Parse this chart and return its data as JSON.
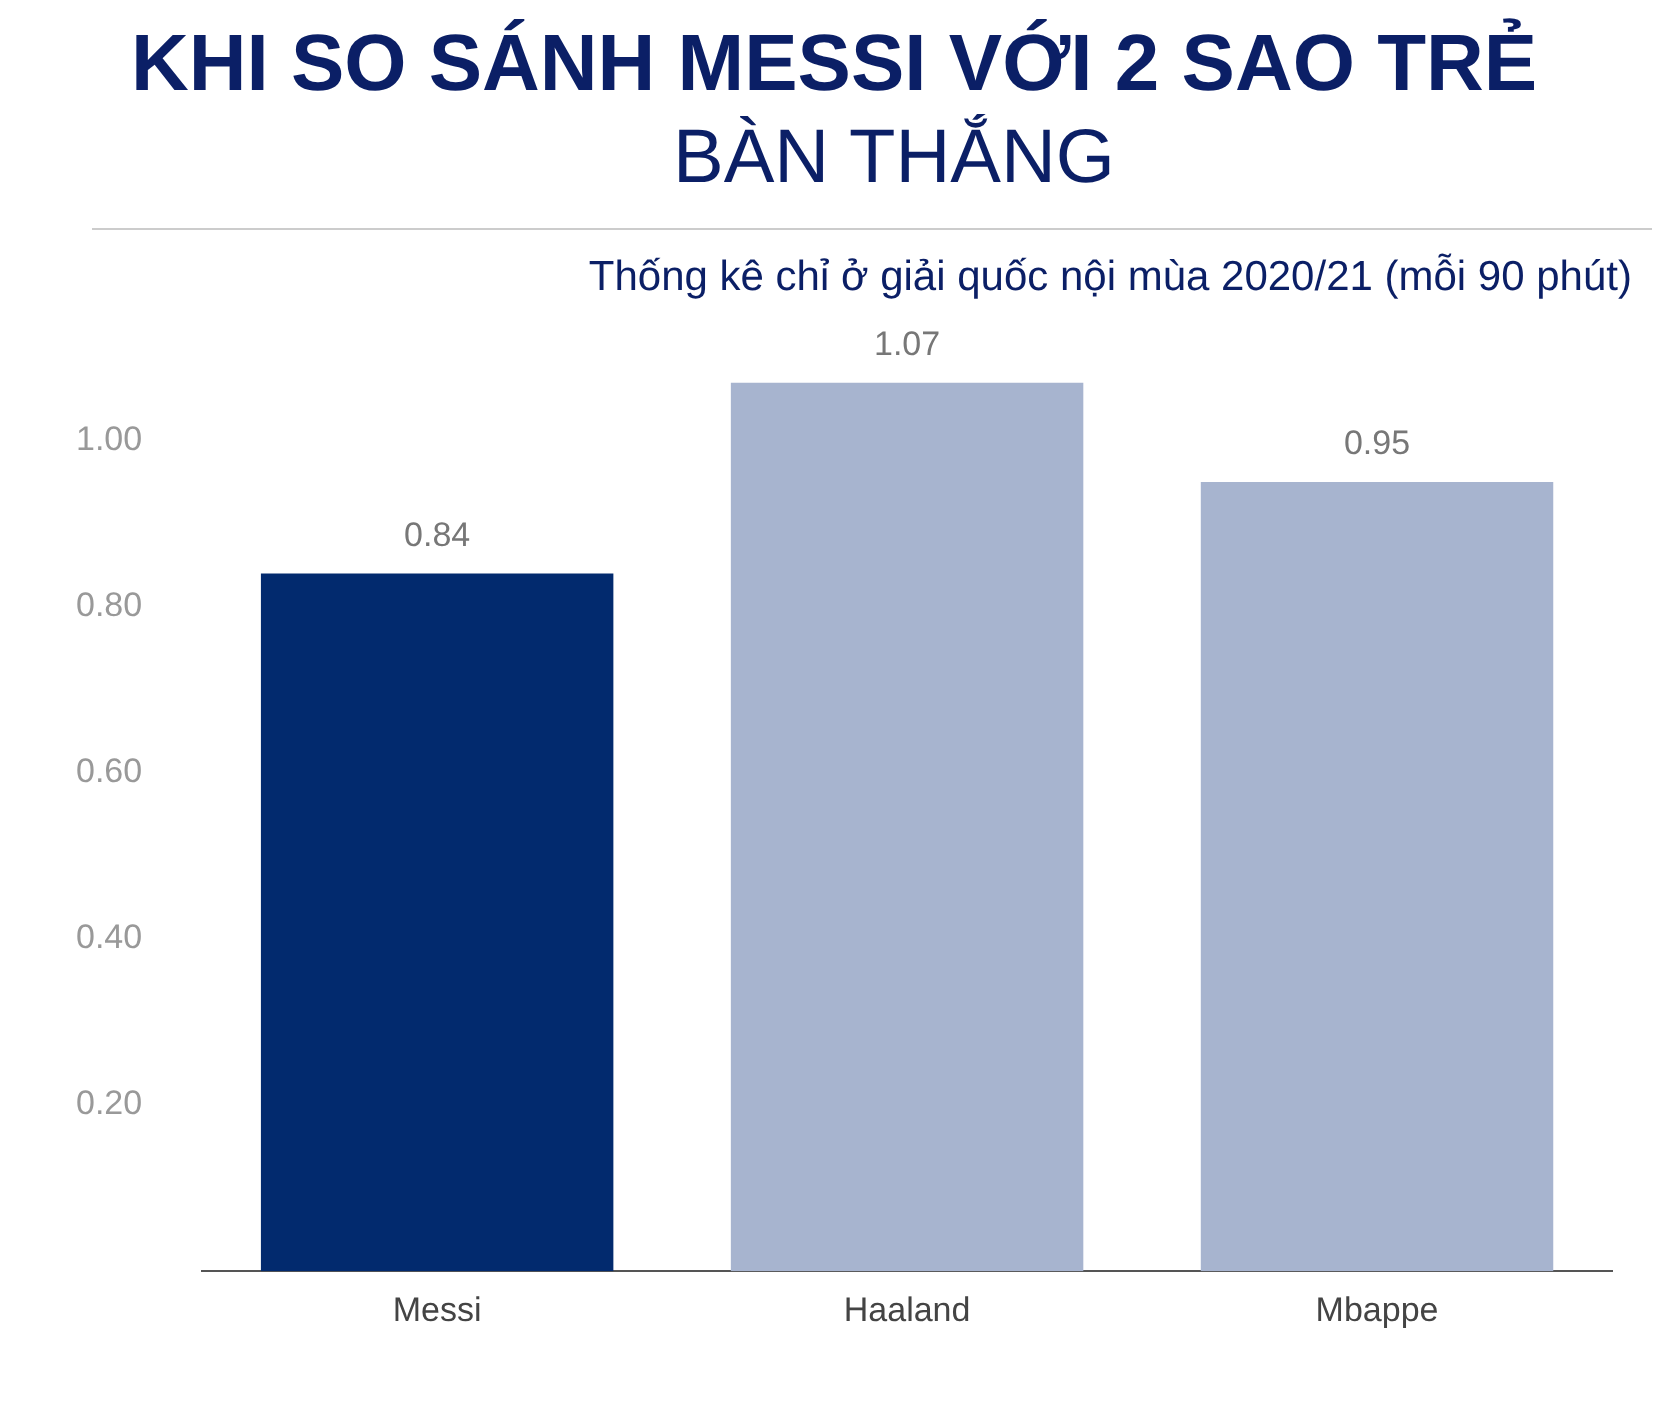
{
  "chart_data": {
    "type": "bar",
    "title": "KHI SO SÁNH MESSI VỚI 2 SAO TRẺ",
    "subtitle": "BÀN THẮNG",
    "annotations": [
      "Thống kê chỉ ở giải quốc nội mùa 2020/21 (mỗi 90 phút)"
    ],
    "categories": [
      "Messi",
      "Haaland",
      "Mbappe"
    ],
    "values": [
      0.84,
      1.07,
      0.95
    ],
    "colors": [
      "#022a6e",
      "#a7b4cf",
      "#a7b4cf"
    ],
    "ylim": [
      0,
      1.07
    ],
    "yticks": [
      {
        "value": 0.2,
        "label": "0.20"
      },
      {
        "value": 0.4,
        "label": "0.40"
      },
      {
        "value": 0.6,
        "label": "0.60"
      },
      {
        "value": 0.8,
        "label": "0.80"
      },
      {
        "value": 1.0,
        "label": "1.00"
      }
    ],
    "data_labels": true,
    "grid": false,
    "legend": false
  }
}
